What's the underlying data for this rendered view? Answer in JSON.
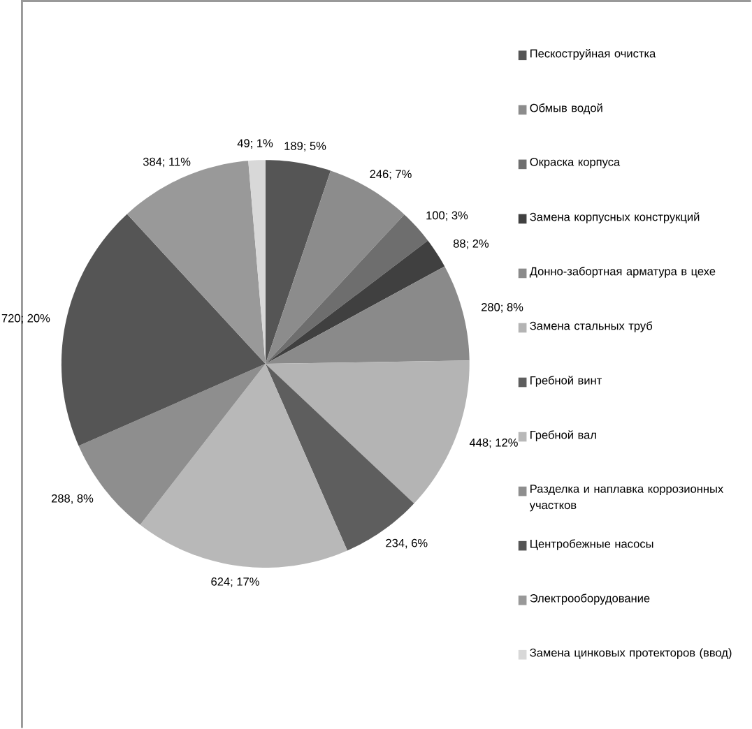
{
  "chart_data": {
    "type": "pie",
    "legend": "right",
    "categories": [
      "Пескоструйная очистка",
      "Обмыв водой",
      "Окраска корпуса",
      "Замена корпусных конструкций",
      "Донно-забортная арматура в цехе",
      "Замена стальных труб",
      "Гребной винт",
      "Гребной вал",
      "Разделка и наплавка коррозионных участков",
      "Центробежные насосы",
      "Электрооборудование",
      "Замена цинковых протекторов (ввод)"
    ],
    "values": [
      189,
      246,
      100,
      88,
      280,
      448,
      234,
      624,
      288,
      720,
      384,
      49
    ],
    "value_labels": [
      "189; 5%",
      "246; 7%",
      "100; 3%",
      "88; 2%",
      "280; 8%",
      "448; 12%",
      "234, 6%",
      "624; 17%",
      "288, 8%",
      "720; 20%",
      "384; 11%",
      "49; 1%"
    ],
    "colors": [
      "#555555",
      "#8c8c8c",
      "#6e6e6e",
      "#404040",
      "#8a8a8a",
      "#b4b4b4",
      "#5e5e5e",
      "#b8b8b8",
      "#8e8e8e",
      "#555555",
      "#999999",
      "#d8d8d8"
    ]
  }
}
